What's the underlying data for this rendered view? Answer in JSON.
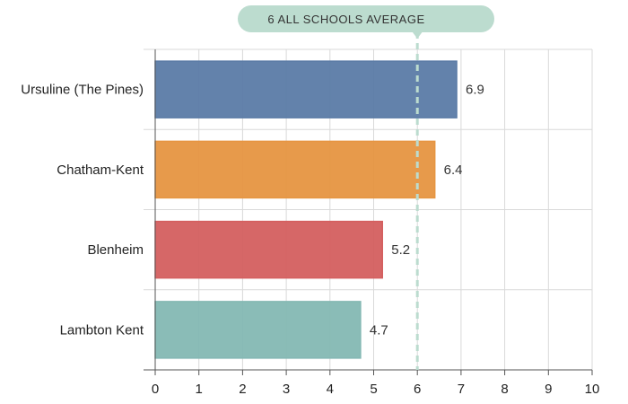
{
  "chart_data": {
    "type": "bar",
    "orientation": "horizontal",
    "categories": [
      "Ursuline (The Pines)",
      "Chatham-Kent",
      "Blenheim",
      "Lambton Kent"
    ],
    "values": [
      6.9,
      6.4,
      5.2,
      4.7
    ],
    "value_labels": [
      "6.9",
      "6.4",
      "5.2",
      "4.7"
    ],
    "colors": [
      "#5b7ba6",
      "#e69541",
      "#d45f5f",
      "#84b8b3"
    ],
    "xlim": [
      0,
      10
    ],
    "x_ticks": [
      "0",
      "1",
      "2",
      "3",
      "4",
      "5",
      "6",
      "7",
      "8",
      "9",
      "10"
    ],
    "grid": true,
    "reference_line": {
      "value": 6,
      "label": "6 ALL SCHOOLS AVERAGE",
      "color": "#bcdccf"
    }
  }
}
